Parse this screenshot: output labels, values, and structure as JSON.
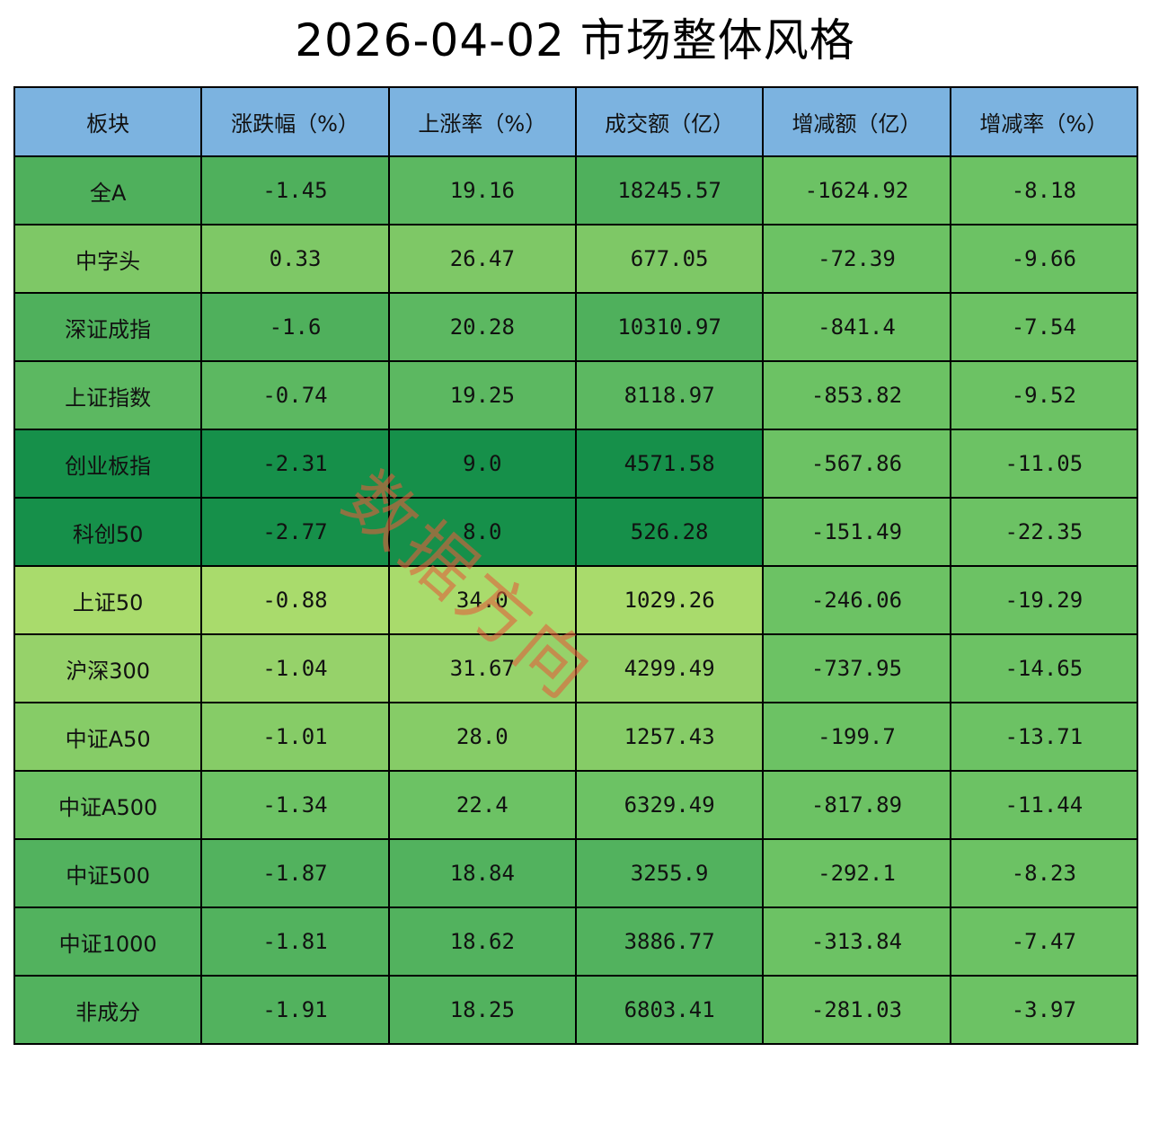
{
  "title": "2026-04-02 市场整体风格",
  "watermark": "数据方向",
  "chart_data": {
    "type": "table",
    "title": "2026-04-02 市场整体风格",
    "columns": [
      "板块",
      "涨跌幅（%）",
      "上涨率（%）",
      "成交额（亿）",
      "增减额（亿）",
      "增减率（%）"
    ],
    "rows": [
      [
        "全A",
        "-1.45",
        "19.16",
        "18245.57",
        "-1624.92",
        "-8.18"
      ],
      [
        "中字头",
        "0.33",
        "26.47",
        "677.05",
        "-72.39",
        "-9.66"
      ],
      [
        "深证成指",
        "-1.6",
        "20.28",
        "10310.97",
        "-841.4",
        "-7.54"
      ],
      [
        "上证指数",
        "-0.74",
        "19.25",
        "8118.97",
        "-853.82",
        "-9.52"
      ],
      [
        "创业板指",
        "-2.31",
        "9.0",
        "4571.58",
        "-567.86",
        "-11.05"
      ],
      [
        "科创50",
        "-2.77",
        "8.0",
        "526.28",
        "-151.49",
        "-22.35"
      ],
      [
        "上证50",
        "-0.88",
        "34.0",
        "1029.26",
        "-246.06",
        "-19.29"
      ],
      [
        "沪深300",
        "-1.04",
        "31.67",
        "4299.49",
        "-737.95",
        "-14.65"
      ],
      [
        "中证A50",
        "-1.01",
        "28.0",
        "1257.43",
        "-199.7",
        "-13.71"
      ],
      [
        "中证A500",
        "-1.34",
        "22.4",
        "6329.49",
        "-817.89",
        "-11.44"
      ],
      [
        "中证500",
        "-1.87",
        "18.84",
        "3255.9",
        "-292.1",
        "-8.23"
      ],
      [
        "中证1000",
        "-1.81",
        "18.62",
        "3886.77",
        "-313.84",
        "-7.47"
      ],
      [
        "非成分",
        "-1.91",
        "18.25",
        "6803.41",
        "-281.03",
        "-3.97"
      ]
    ],
    "cell_colors": [
      [
        "#4fb05c",
        "#4fb05c",
        "#5cb861",
        "#4fb05c",
        "#6cc264",
        "#6cc264"
      ],
      [
        "#7ec866",
        "#7ec866",
        "#7ec866",
        "#7ec866",
        "#6cc264",
        "#6cc264"
      ],
      [
        "#4fb05c",
        "#4fb05c",
        "#5cb861",
        "#4fb05c",
        "#6cc264",
        "#6cc264"
      ],
      [
        "#5cb861",
        "#5cb861",
        "#5cb861",
        "#5cb861",
        "#6cc264",
        "#6cc264"
      ],
      [
        "#16904a",
        "#16904a",
        "#16904a",
        "#16904a",
        "#6cc264",
        "#6cc264"
      ],
      [
        "#16904a",
        "#16904a",
        "#16904a",
        "#16904a",
        "#6cc264",
        "#6cc264"
      ],
      [
        "#a9db6c",
        "#a9db6c",
        "#a9db6c",
        "#a9db6c",
        "#6cc264",
        "#6cc264"
      ],
      [
        "#96d26a",
        "#96d26a",
        "#96d26a",
        "#96d26a",
        "#6cc264",
        "#6cc264"
      ],
      [
        "#86cc67",
        "#86cc67",
        "#86cc67",
        "#86cc67",
        "#6cc264",
        "#6cc264"
      ],
      [
        "#6cc264",
        "#6cc264",
        "#6cc264",
        "#6cc264",
        "#6cc264",
        "#6cc264"
      ],
      [
        "#52b25e",
        "#52b25e",
        "#52b25e",
        "#52b25e",
        "#6cc264",
        "#6cc264"
      ],
      [
        "#52b25e",
        "#52b25e",
        "#52b25e",
        "#52b25e",
        "#6cc264",
        "#6cc264"
      ],
      [
        "#52b25e",
        "#52b25e",
        "#52b25e",
        "#52b25e",
        "#6cc264",
        "#6cc264"
      ]
    ],
    "header_color": "#7cb3e0"
  }
}
